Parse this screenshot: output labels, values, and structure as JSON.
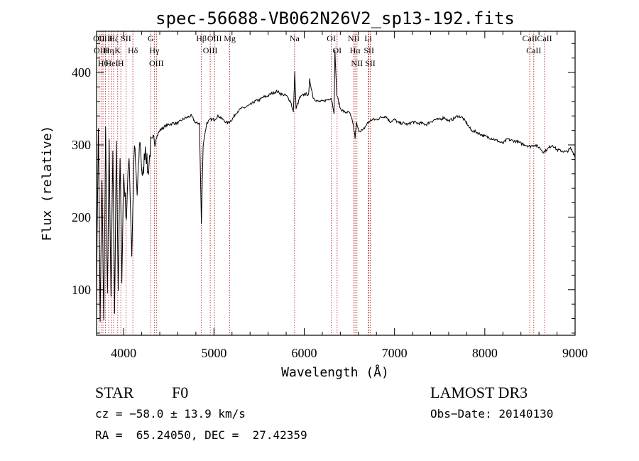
{
  "chart_data": {
    "type": "line",
    "title": "spec-56688-VB062N26V2_sp13-192.fits",
    "xlabel": "Wavelength (Å)",
    "ylabel": "Flux (relative)",
    "xlim": [
      3700,
      9000
    ],
    "ylim": [
      37,
      457
    ],
    "xticks": [
      4000,
      5000,
      6000,
      7000,
      8000,
      9000
    ],
    "yticks": [
      100,
      200,
      300,
      400
    ],
    "series": [
      {
        "name": "flux",
        "x": [
          3700,
          3720,
          3740,
          3760,
          3780,
          3800,
          3820,
          3840,
          3860,
          3880,
          3900,
          3920,
          3940,
          3960,
          3980,
          4000,
          4030,
          4060,
          4090,
          4120,
          4150,
          4180,
          4210,
          4240,
          4270,
          4300,
          4320,
          4340,
          4360,
          4400,
          4450,
          4500,
          4550,
          4600,
          4650,
          4700,
          4750,
          4800,
          4840,
          4861,
          4880,
          4920,
          4960,
          5000,
          5050,
          5100,
          5150,
          5200,
          5250,
          5300,
          5350,
          5400,
          5450,
          5500,
          5550,
          5600,
          5650,
          5700,
          5750,
          5800,
          5850,
          5880,
          5895,
          5910,
          5950,
          6000,
          6050,
          6060,
          6100,
          6150,
          6200,
          6250,
          6300,
          6330,
          6340,
          6360,
          6400,
          6450,
          6500,
          6540,
          6563,
          6580,
          6600,
          6650,
          6700,
          6750,
          6800,
          6850,
          6900,
          6950,
          7000,
          7050,
          7100,
          7150,
          7200,
          7250,
          7300,
          7350,
          7400,
          7450,
          7500,
          7550,
          7600,
          7650,
          7700,
          7750,
          7800,
          7850,
          7900,
          7950,
          8000,
          8050,
          8100,
          8150,
          8200,
          8250,
          8300,
          8350,
          8400,
          8450,
          8500,
          8550,
          8600,
          8650,
          8700,
          8750,
          8800,
          8850,
          8900,
          8950,
          9000
        ],
        "values": [
          90,
          330,
          60,
          250,
          50,
          320,
          90,
          300,
          80,
          290,
          70,
          310,
          100,
          280,
          120,
          260,
          200,
          290,
          150,
          300,
          230,
          310,
          250,
          300,
          260,
          300,
          300,
          310,
          310,
          320,
          325,
          328,
          330,
          330,
          335,
          338,
          340,
          330,
          330,
          190,
          300,
          330,
          335,
          335,
          340,
          335,
          330,
          335,
          345,
          350,
          352,
          355,
          360,
          362,
          366,
          368,
          372,
          374,
          370,
          368,
          360,
          345,
          400,
          350,
          365,
          370,
          370,
          390,
          365,
          360,
          360,
          362,
          365,
          345,
          430,
          370,
          350,
          345,
          345,
          330,
          310,
          330,
          320,
          320,
          330,
          335,
          335,
          338,
          340,
          332,
          335,
          330,
          330,
          328,
          332,
          330,
          330,
          328,
          332,
          335,
          335,
          338,
          333,
          336,
          340,
          338,
          330,
          320,
          318,
          315,
          312,
          310,
          308,
          305,
          302,
          308,
          306,
          305,
          302,
          300,
          298,
          300,
          297,
          290,
          295,
          300,
          293,
          292,
          290,
          295,
          285
        ]
      }
    ],
    "line_markers": [
      {
        "wavelength": 3727,
        "label": "OII"
      },
      {
        "wavelength": 3750,
        "label": "OIII"
      },
      {
        "wavelength": 3771,
        "label": "Hθ"
      },
      {
        "wavelength": 3798,
        "label": "OIII"
      },
      {
        "wavelength": 3835,
        "label": "Hη"
      },
      {
        "wavelength": 3869,
        "label": "HeI"
      },
      {
        "wavelength": 3889,
        "label": "Hζ"
      },
      {
        "wavelength": 3934,
        "label": "K"
      },
      {
        "wavelength": 3969,
        "label": "H"
      },
      {
        "wavelength": 4026,
        "label": "SII"
      },
      {
        "wavelength": 4102,
        "label": "Hδ"
      },
      {
        "wavelength": 4300,
        "label": "G"
      },
      {
        "wavelength": 4340,
        "label": "Hγ"
      },
      {
        "wavelength": 4363,
        "label": "OIII"
      },
      {
        "wavelength": 4861,
        "label": "Hβ"
      },
      {
        "wavelength": 4959,
        "label": "OIII"
      },
      {
        "wavelength": 5007,
        "label": "OIII"
      },
      {
        "wavelength": 5175,
        "label": "Mg"
      },
      {
        "wavelength": 5893,
        "label": "Na"
      },
      {
        "wavelength": 6300,
        "label": "OI"
      },
      {
        "wavelength": 6364,
        "label": "OI"
      },
      {
        "wavelength": 6548,
        "label": "NII"
      },
      {
        "wavelength": 6563,
        "label": "Hα"
      },
      {
        "wavelength": 6584,
        "label": "NII"
      },
      {
        "wavelength": 6708,
        "label": "Li"
      },
      {
        "wavelength": 6717,
        "label": "SII"
      },
      {
        "wavelength": 6731,
        "label": "SII"
      },
      {
        "wavelength": 8498,
        "label": "CaII"
      },
      {
        "wavelength": 8542,
        "label": "CaII"
      },
      {
        "wavelength": 8662,
        "label": "CaII"
      }
    ]
  },
  "info": {
    "class": "STAR",
    "subclass": "F0",
    "survey": "LAMOST DR3",
    "cz": "cz = −58.0 ± 13.9 km/s",
    "obs_date": "Obs−Date: 20140130",
    "radec": "RA =  65.24050, DEC =  27.42359"
  }
}
